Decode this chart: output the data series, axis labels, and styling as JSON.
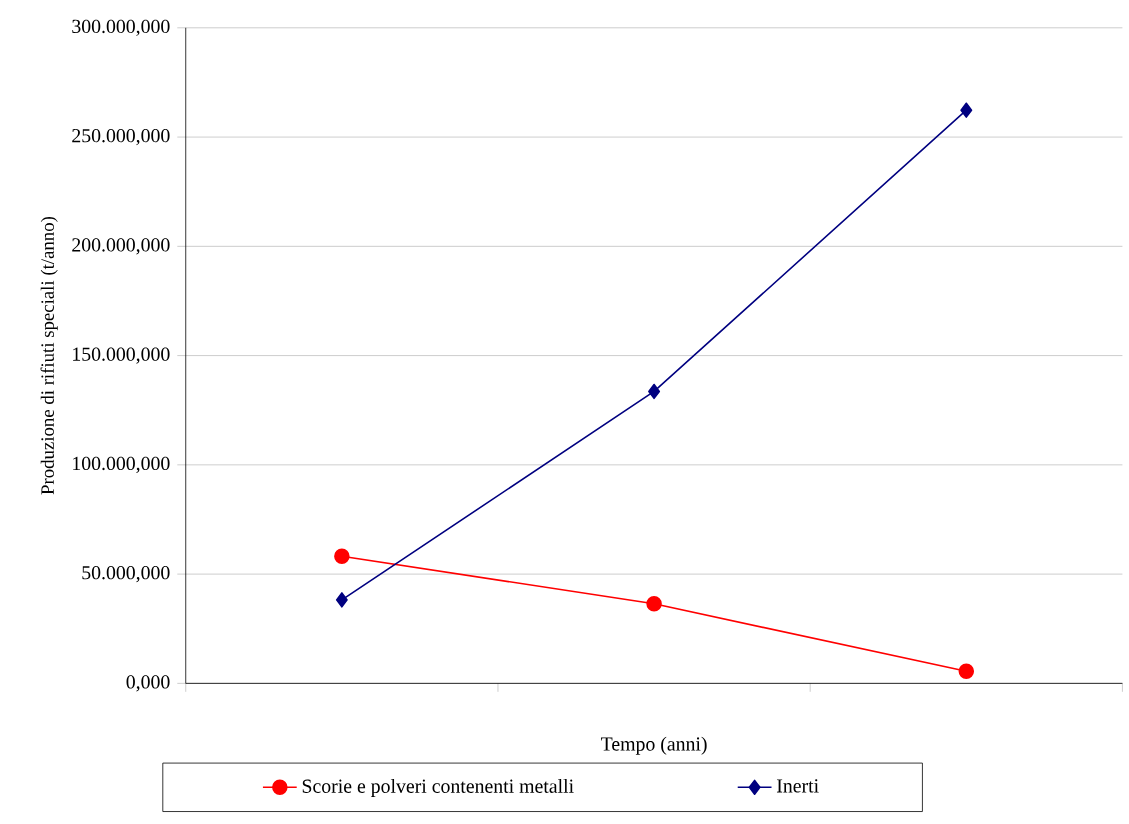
{
  "chart_data": {
    "type": "line",
    "xlabel": "Tempo (anni)",
    "ylabel": "Produzione di rifiuti speciali (t/anno)",
    "categories": [
      null,
      null,
      null
    ],
    "series": [
      {
        "name": "Scorie e polveri contenenti metalli",
        "color": "#ff0000",
        "marker": "circle",
        "values": [
          58200,
          36400,
          5500
        ]
      },
      {
        "name": "Inerti",
        "color": "#000080",
        "marker": "diamond",
        "values": [
          38200,
          133600,
          262300
        ]
      }
    ],
    "ylim": [
      0,
      300000
    ],
    "yticks": [
      {
        "value": 0,
        "label": "0,000"
      },
      {
        "value": 50000,
        "label": "50.000,000"
      },
      {
        "value": 100000,
        "label": "100.000,000"
      },
      {
        "value": 150000,
        "label": "150.000,000"
      },
      {
        "value": 200000,
        "label": "200.000,000"
      },
      {
        "value": 250000,
        "label": "250.000,000"
      },
      {
        "value": 300000,
        "label": "300.000,000"
      }
    ],
    "grid": "y",
    "legend": "bottom"
  }
}
